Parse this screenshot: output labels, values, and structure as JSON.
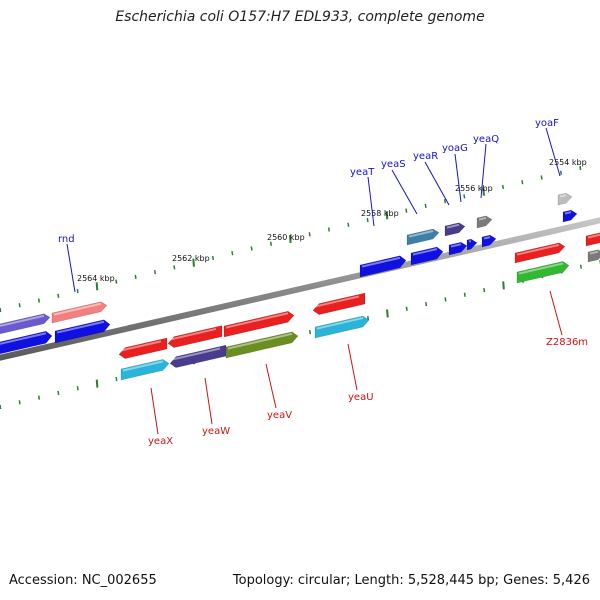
{
  "title": "Escherichia coli O157:H7 EDL933, complete genome",
  "footer": {
    "accession": "Accession: NC_002655",
    "stats": "Topology: circular; Length: 5,528,445 bp; Genes: 5,426"
  },
  "colors": {
    "backbone": "#8a8a8a",
    "tick": "#2e7d32",
    "label_top": "#1414cc",
    "label_bottom": "#cc1414"
  },
  "scale_ticks": [
    "2564 kbp",
    "2562 kbp",
    "2560 kbp",
    "2558 kbp",
    "2556 kbp",
    "2554 kbp"
  ],
  "labels_top": [
    "rnd",
    "yeaT",
    "yeaS",
    "yeaR",
    "yoaG",
    "yeaQ",
    "yoaF"
  ],
  "labels_bottom": [
    "yeaX",
    "yeaW",
    "yeaV",
    "yeaU",
    "Z2836m"
  ],
  "genes": {
    "top_strand": [
      {
        "color": "#6a5acd",
        "dir": "right"
      },
      {
        "color": "#f28080",
        "dir": "right"
      },
      {
        "color": "#3e7fa8",
        "dir": "right"
      },
      {
        "color": "#4a3c8c",
        "dir": "right"
      },
      {
        "color": "#7a7a7a",
        "dir": "right"
      },
      {
        "color": "#bdbdbd",
        "dir": "right"
      },
      {
        "color": "#e82020",
        "dir": "right"
      },
      {
        "color": "#e82020",
        "dir": "right"
      }
    ],
    "bottom_strand": [
      {
        "color": "#e82020",
        "dir": "left"
      },
      {
        "color": "#e82020",
        "dir": "left"
      },
      {
        "color": "#e82020",
        "dir": "right"
      },
      {
        "color": "#e82020",
        "dir": "left"
      },
      {
        "color": "#2ab5d8",
        "dir": "right"
      },
      {
        "color": "#4a3c8c",
        "dir": "left"
      },
      {
        "color": "#6b8e23",
        "dir": "right"
      },
      {
        "color": "#2ab5d8",
        "dir": "right"
      },
      {
        "color": "#32b832",
        "dir": "right"
      }
    ],
    "blue_strand_blocks": 9
  }
}
